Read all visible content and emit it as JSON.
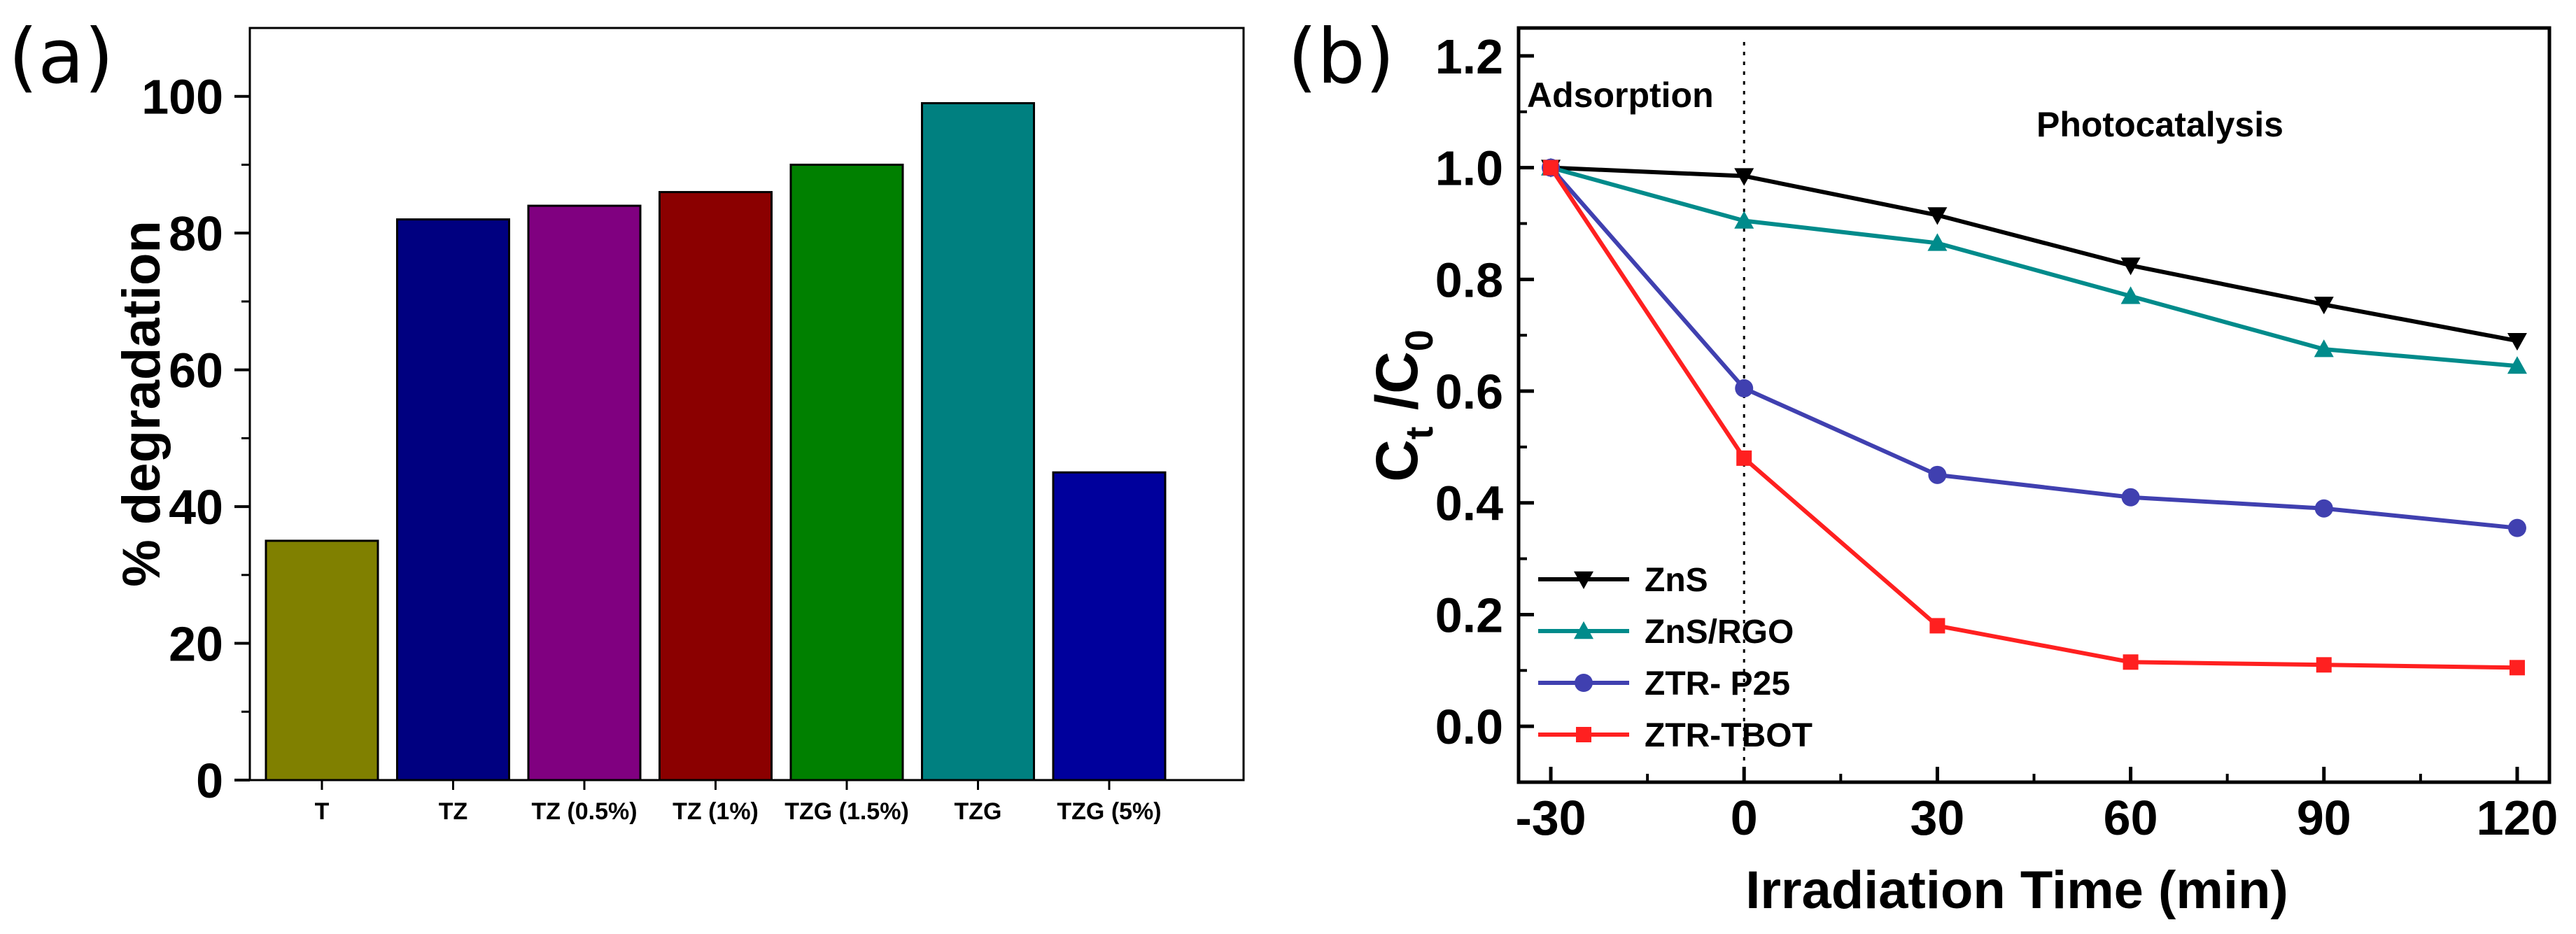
{
  "chart_data": [
    {
      "panel_label": "(a)",
      "type": "bar",
      "categories": [
        "T",
        "TZ",
        "TZ (0.5%)",
        "TZ (1%)",
        "TZG (1.5%)",
        "TZG",
        "TZG (5%)"
      ],
      "values": [
        35,
        82,
        84,
        86,
        90,
        99,
        45
      ],
      "colors": [
        "#808000",
        "#000080",
        "#800080",
        "#8b0000",
        "#008000",
        "#008080",
        "#00009c"
      ],
      "ylabel": "% degradation",
      "xlabel": "",
      "ylim": [
        0,
        110
      ],
      "yticks": [
        0,
        20,
        40,
        60,
        80,
        100
      ],
      "grid": false
    },
    {
      "panel_label": "(b)",
      "type": "line",
      "x": [
        -30,
        0,
        30,
        60,
        90,
        120
      ],
      "xticks": [
        -30,
        0,
        30,
        60,
        90,
        120
      ],
      "xlim": [
        -35,
        125
      ],
      "ylim": [
        -0.1,
        1.25
      ],
      "yticks": [
        0.0,
        0.2,
        0.4,
        0.6,
        0.8,
        1.0,
        1.2
      ],
      "xlabel": "Irradiation Time (min)",
      "ylabel_main": "C",
      "ylabel_sub1": "t",
      "ylabel_mid": " /C",
      "ylabel_sub2": "0",
      "annotations": [
        "Adsorption",
        "Photocatalysis"
      ],
      "divider_x": 0,
      "grid": false,
      "legend_position": "bottom-left",
      "series": [
        {
          "name": "ZnS",
          "color": "#000000",
          "marker": "triangle-down",
          "values": [
            1.0,
            0.985,
            0.915,
            0.825,
            0.755,
            0.69
          ]
        },
        {
          "name": "ZnS/RGO",
          "color": "#008b8b",
          "marker": "triangle-up",
          "values": [
            1.0,
            0.905,
            0.865,
            0.77,
            0.675,
            0.645
          ]
        },
        {
          "name": "ZTR- P25",
          "color": "#4040b0",
          "marker": "circle",
          "values": [
            1.0,
            0.605,
            0.45,
            0.41,
            0.39,
            0.355
          ]
        },
        {
          "name": "ZTR-TBOT",
          "color": "#ff2020",
          "marker": "square",
          "values": [
            1.0,
            0.48,
            0.18,
            0.115,
            0.11,
            0.105
          ]
        }
      ]
    }
  ]
}
